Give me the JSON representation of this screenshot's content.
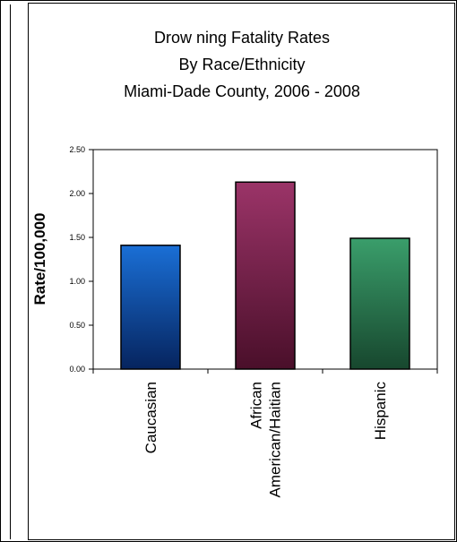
{
  "chart_data": {
    "type": "bar",
    "title_lines": [
      "Drow ning Fatality Rates",
      "By Race/Ethnicity",
      "Miami-Dade County, 2006 - 2008"
    ],
    "ylabel": "Rate/100,000",
    "xlabel": "",
    "categories": [
      "Caucasian",
      "African American/Haitian",
      "Hispanic"
    ],
    "category_label_lines": [
      [
        "Caucasian"
      ],
      [
        "African",
        "American/Haitian"
      ],
      [
        "Hispanic"
      ]
    ],
    "values": [
      1.41,
      2.13,
      1.49
    ],
    "ylim": [
      0,
      2.5
    ],
    "yticks": [
      0,
      0.5,
      1.0,
      1.5,
      2.0,
      2.5
    ],
    "ytick_labels": [
      "0.00",
      "0.50",
      "1.00",
      "1.50",
      "2.00",
      "2.50"
    ],
    "bar_colors": [
      {
        "top": "#1a6fd6",
        "bottom": "#06245e"
      },
      {
        "top": "#9b3468",
        "bottom": "#4a0f2a"
      },
      {
        "top": "#3a9e6b",
        "bottom": "#17472e"
      }
    ],
    "grid": false,
    "legend": "none"
  }
}
